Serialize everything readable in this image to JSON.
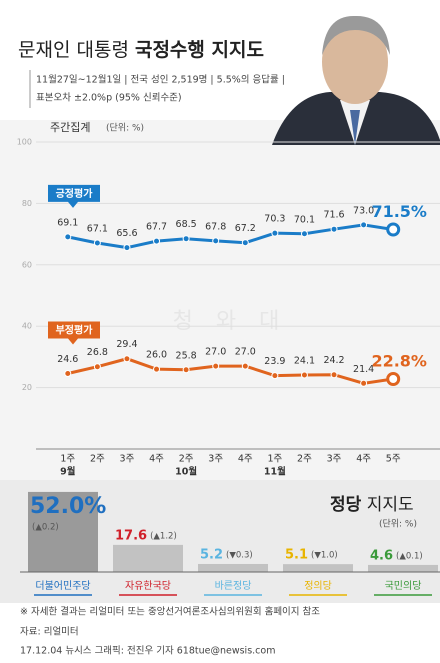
{
  "header": {
    "title": [
      "문재인 대통령",
      "국정수행 지지도"
    ],
    "subtitle": [
      "11월27일~12월1일 | 전국 성인 2,519명 | 5.5%의 응답률 |",
      "표본오차 ±2.0%p (95% 신뢰수준)"
    ]
  },
  "chart_data": [
    {
      "type": "line",
      "title": "주간집계",
      "unit": "(단위: %)",
      "watermark": "청 와 대",
      "categories": [
        "1주",
        "2주",
        "3주",
        "4주",
        "2주",
        "3주",
        "4주",
        "1주",
        "2주",
        "3주",
        "4주",
        "5주"
      ],
      "months": [
        "9월",
        null,
        null,
        null,
        "10월",
        null,
        null,
        "11월",
        null,
        null,
        null,
        null
      ],
      "ylim": [
        0,
        100
      ],
      "yticks": [
        20,
        40,
        60,
        80,
        100
      ],
      "grid": true,
      "series": [
        {
          "name": "긍정평가",
          "color": "#1a7cc8",
          "values": [
            69.1,
            67.1,
            65.6,
            67.7,
            68.5,
            67.8,
            67.2,
            70.3,
            70.1,
            71.6,
            73.0,
            71.5
          ],
          "value_labels": [
            "69.1",
            "67.1",
            "65.6",
            "67.7",
            "68.5",
            "67.8",
            "67.2",
            "70.3",
            "70.1",
            "71.6",
            "73.0",
            "71.5%"
          ]
        },
        {
          "name": "부정평가",
          "color": "#e0641e",
          "values": [
            24.6,
            26.8,
            29.4,
            26.0,
            25.8,
            27.0,
            27.0,
            23.9,
            24.1,
            24.2,
            21.4,
            22.8
          ],
          "value_labels": [
            "24.6",
            "26.8",
            "29.4",
            "26.0",
            "25.8",
            "27.0",
            "27.0",
            "23.9",
            "24.1",
            "24.2",
            "21.4",
            "22.8%"
          ]
        }
      ]
    },
    {
      "type": "bar",
      "title": [
        "정당",
        "지지도"
      ],
      "unit": "(단위: %)",
      "categories": [
        "더불어민주당",
        "자유한국당",
        "바른정당",
        "정의당",
        "국민의당"
      ],
      "colors": [
        "#1f6fc0",
        "#d0202a",
        "#5ab4e0",
        "#e8b400",
        "#3a9a3a"
      ],
      "bar_colors": [
        "#9a9a9a",
        "#c2c2c2",
        "#c2c2c2",
        "#c2c2c2",
        "#c2c2c2"
      ],
      "values": [
        52.0,
        17.6,
        5.2,
        5.1,
        4.6
      ],
      "value_labels": [
        "52.0%",
        "17.6",
        "5.2",
        "5.1",
        "4.6"
      ],
      "changes": [
        "(▲0.2)",
        "(▲1.2)",
        "(▼0.3)",
        "(▼1.0)",
        "(▲0.1)"
      ]
    }
  ],
  "footer": {
    "note": "※ 자세한 결과는 리얼미터 또는 중앙선거여론조사심의위원회 홈페이지 참조",
    "source": "자료: 리얼미터",
    "credit": "17.12.04 뉴시스 그래픽: 전진우 기자 618tue@newsis.com"
  }
}
